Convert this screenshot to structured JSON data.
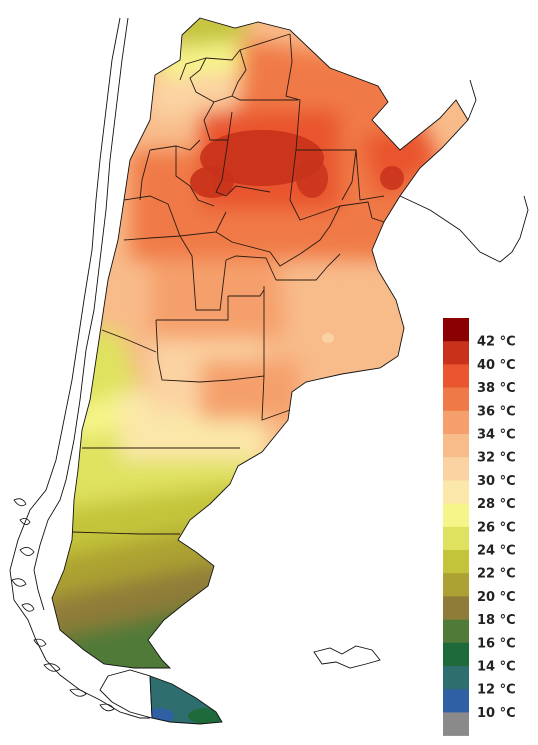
{
  "legend": {
    "unit_suffix": "°C",
    "items": [
      {
        "label": "42 °C",
        "color": "#8b0000"
      },
      {
        "label": "40 °C",
        "color": "#c8321b"
      },
      {
        "label": "38 °C",
        "color": "#e9552f"
      },
      {
        "label": "36 °C",
        "color": "#f07a47"
      },
      {
        "label": "34 °C",
        "color": "#f5a06c"
      },
      {
        "label": "32 °C",
        "color": "#f8bb8a"
      },
      {
        "label": "30 °C",
        "color": "#fbd3a2"
      },
      {
        "label": "28 °C",
        "color": "#fbe7a9"
      },
      {
        "label": "26 °C",
        "color": "#f6f58a"
      },
      {
        "label": "24 °C",
        "color": "#dfe25e"
      },
      {
        "label": "22 °C",
        "color": "#c4c43a"
      },
      {
        "label": "20 °C",
        "color": "#aca133"
      },
      {
        "label": "18 °C",
        "color": "#8f7c38"
      },
      {
        "label": "16 °C",
        "color": "#4f7a38"
      },
      {
        "label": "14 °C",
        "color": "#1e6a3a"
      },
      {
        "label": "12 °C",
        "color": "#2f6e6e"
      },
      {
        "label": "10 °C",
        "color": "#2f60a4"
      },
      {
        "label": "",
        "color": "#8a8a8a"
      }
    ]
  }
}
